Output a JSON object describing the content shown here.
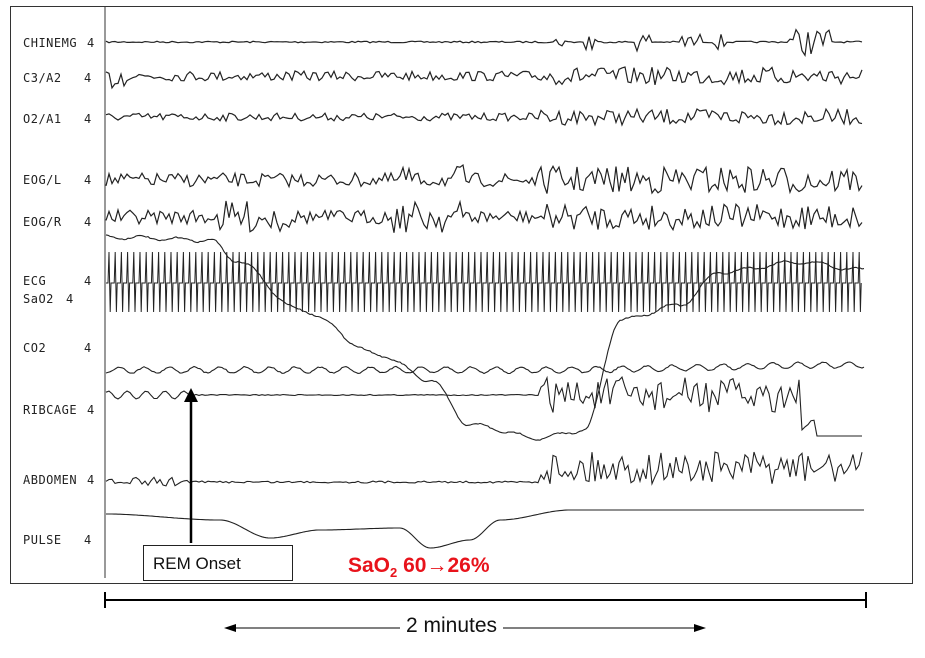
{
  "channels": [
    {
      "label": "CHINEMG",
      "gain": "4"
    },
    {
      "label": "C3/A2",
      "gain": "4"
    },
    {
      "label": "O2/A1",
      "gain": "4"
    },
    {
      "label": "EOG/L",
      "gain": "4"
    },
    {
      "label": "EOG/R",
      "gain": "4"
    },
    {
      "label": "ECG",
      "gain": "4"
    },
    {
      "label": "SaO2",
      "gain": "4"
    },
    {
      "label": "CO2",
      "gain": "4"
    },
    {
      "label": "RIBCAGE",
      "gain": "4"
    },
    {
      "label": "ABDOMEN",
      "gain": "4"
    },
    {
      "label": "PULSE",
      "gain": "4"
    }
  ],
  "annotations": {
    "rem_onset": "REM Onset",
    "sao2_prefix": "SaO",
    "sao2_sub": "2",
    "sao2_range": " 60→26%"
  },
  "scale": {
    "label": "2 minutes"
  },
  "colors": {
    "trace": "#222222",
    "annotation": "#e8131b"
  }
}
